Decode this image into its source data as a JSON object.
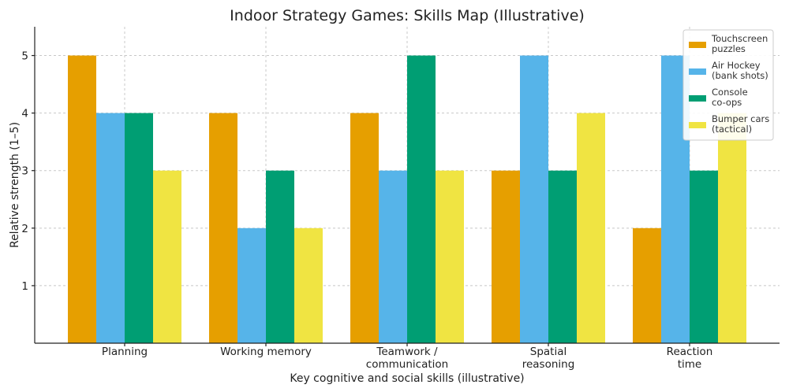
{
  "chart_data": {
    "type": "bar",
    "title": "Indoor Strategy Games: Skills Map (Illustrative)",
    "xlabel": "Key cognitive and social skills (illustrative)",
    "ylabel": "Relative strength (1–5)",
    "ylim": [
      0,
      5.5
    ],
    "yticks": [
      1,
      2,
      3,
      4,
      5
    ],
    "grid": true,
    "legend_position": "top-right",
    "categories": [
      [
        "Planning"
      ],
      [
        "Working memory"
      ],
      [
        "Teamwork /",
        "communication"
      ],
      [
        "Spatial",
        "reasoning"
      ],
      [
        "Reaction",
        "time"
      ]
    ],
    "series": [
      {
        "name": [
          "Touchscreen",
          "puzzles"
        ],
        "color": "#E69F00",
        "values": [
          5,
          4,
          4,
          3,
          2
        ]
      },
      {
        "name": [
          "Air Hockey",
          "(bank shots)"
        ],
        "color": "#56B4E9",
        "values": [
          4,
          2,
          3,
          5,
          5
        ]
      },
      {
        "name": [
          "Console",
          "co-ops"
        ],
        "color": "#009E73",
        "values": [
          4,
          3,
          5,
          3,
          3
        ]
      },
      {
        "name": [
          "Bumper cars",
          "(tactical)"
        ],
        "color": "#F0E442",
        "values": [
          3,
          2,
          3,
          4,
          4
        ]
      }
    ]
  }
}
